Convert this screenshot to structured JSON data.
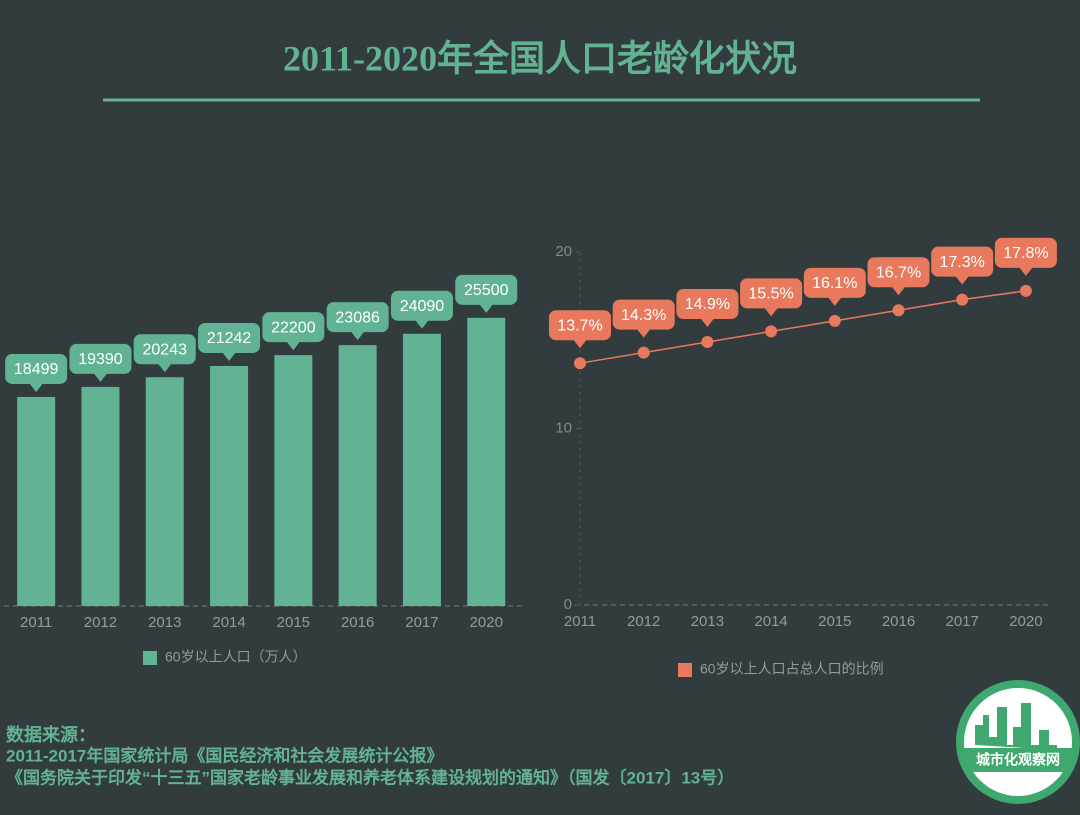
{
  "title": "2011-2020年全国人口老龄化状况",
  "chart_data": [
    {
      "type": "bar",
      "categories": [
        "2011",
        "2012",
        "2013",
        "2014",
        "2015",
        "2016",
        "2017",
        "2020"
      ],
      "values": [
        18499,
        19390,
        20243,
        21242,
        22200,
        23086,
        24090,
        25500
      ],
      "series_name": "60岁以上人口（万人）",
      "color": "#62b294",
      "ylim": [
        0,
        30000
      ]
    },
    {
      "type": "line",
      "categories": [
        "2011",
        "2012",
        "2013",
        "2014",
        "2015",
        "2016",
        "2017",
        "2020"
      ],
      "values": [
        13.7,
        14.3,
        14.9,
        15.5,
        16.1,
        16.7,
        17.3,
        17.8
      ],
      "value_labels": [
        "13.7%",
        "14.3%",
        "14.9%",
        "15.5%",
        "16.1%",
        "16.7%",
        "17.3%",
        "17.8%"
      ],
      "series_name": "60岁以上人口占总人口的比例",
      "color": "#e8795c",
      "ylim": [
        0,
        20
      ],
      "yticks": [
        0,
        10,
        20
      ]
    }
  ],
  "source": {
    "label": "数据来源：",
    "lines": [
      "2011-2017年国家统计局《国民经济和社会发展统计公报》",
      "《国务院关于印发“十三五”国家老龄事业发展和养老体系建设规划的通知》（国发〔2017〕13号）"
    ]
  },
  "logo": "城市化观察网"
}
